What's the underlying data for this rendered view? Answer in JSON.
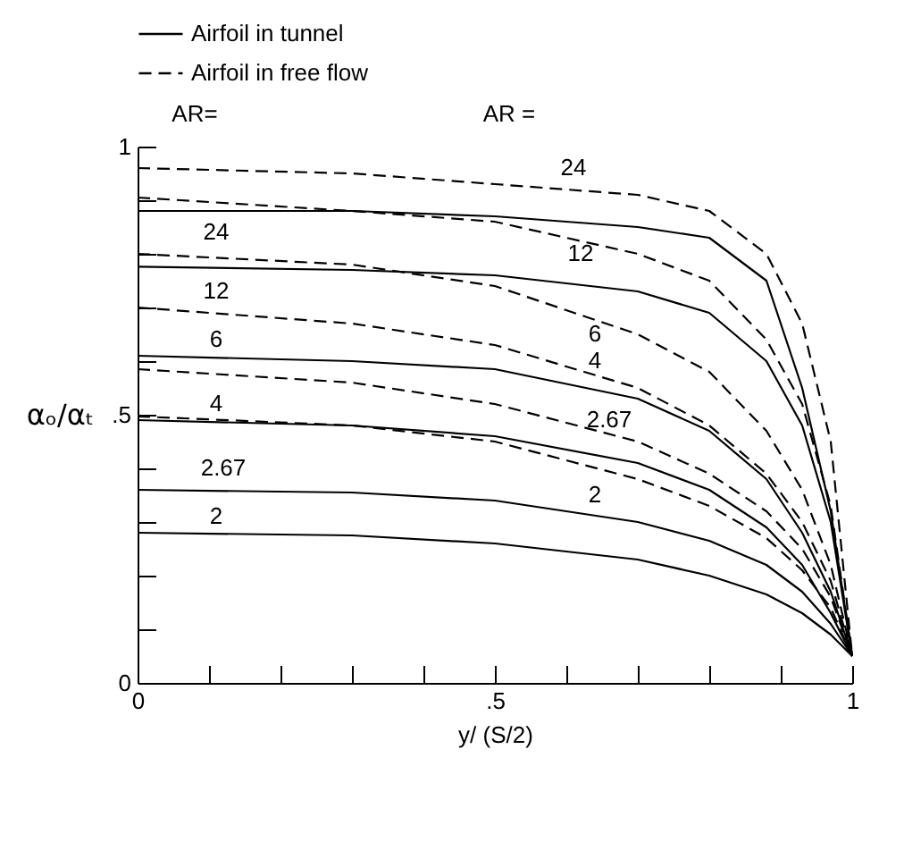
{
  "chart_data": {
    "type": "line",
    "xlabel": "y/ (S/2)",
    "ylabel": "αₒ/αₜ",
    "legend": "top",
    "marker": "none",
    "grid": false,
    "xlim": [
      0,
      1
    ],
    "ylim": [
      0,
      1
    ],
    "xticks": [
      0,
      {
        "value": 0.1,
        "label": null
      },
      {
        "value": 0.2,
        "label": null
      },
      {
        "value": 0.3,
        "label": null
      },
      {
        "value": 0.4,
        "label": null
      },
      {
        "value": 0.5,
        "label": ".5"
      },
      {
        "value": 0.6,
        "label": null
      },
      {
        "value": 0.7,
        "label": null
      },
      {
        "value": 0.8,
        "label": null
      },
      {
        "value": 0.9,
        "label": null
      },
      1
    ],
    "yticks": [
      0,
      {
        "value": 0.1,
        "label": null
      },
      {
        "value": 0.2,
        "label": null
      },
      {
        "value": 0.3,
        "label": null
      },
      {
        "value": 0.4,
        "label": null
      },
      {
        "value": 0.5,
        "label": ".5"
      },
      {
        "value": 0.6,
        "label": null
      },
      {
        "value": 0.7,
        "label": null
      },
      {
        "value": 0.8,
        "label": null
      },
      {
        "value": 0.9,
        "label": null
      },
      1
    ],
    "x": [
      0,
      0.3,
      0.5,
      0.7,
      0.8,
      0.88,
      0.93,
      0.97,
      1
    ],
    "series": [
      {
        "name": "Airfoil in tunnel",
        "color": "#000000",
        "line_style": "solid",
        "values": [
          0.88,
          0.88,
          0.87,
          0.85,
          0.83,
          0.75,
          0.55,
          0.32,
          0.05
        ]
      },
      {
        "color": "#000000",
        "line_style": "solid",
        "values": [
          0.776,
          0.77,
          0.76,
          0.73,
          0.69,
          0.6,
          0.48,
          0.3,
          0.05
        ]
      },
      {
        "color": "#000000",
        "line_style": "solid",
        "values": [
          0.61,
          0.6,
          0.585,
          0.53,
          0.47,
          0.38,
          0.28,
          0.17,
          0.05
        ]
      },
      {
        "color": "#000000",
        "line_style": "solid",
        "values": [
          0.49,
          0.48,
          0.46,
          0.41,
          0.36,
          0.29,
          0.22,
          0.13,
          0.05
        ]
      },
      {
        "color": "#000000",
        "line_style": "solid",
        "values": [
          0.36,
          0.355,
          0.34,
          0.3,
          0.265,
          0.22,
          0.17,
          0.11,
          0.05
        ]
      },
      {
        "color": "#000000",
        "line_style": "solid",
        "values": [
          0.28,
          0.275,
          0.26,
          0.23,
          0.2,
          0.165,
          0.13,
          0.09,
          0.05
        ]
      },
      {
        "name": "Airfoil in free flow",
        "color": "#000000",
        "line_style": "dashed",
        "values": [
          0.96,
          0.95,
          0.93,
          0.91,
          0.88,
          0.8,
          0.67,
          0.45,
          0.05
        ]
      },
      {
        "color": "#000000",
        "line_style": "dashed",
        "values": [
          0.905,
          0.88,
          0.86,
          0.8,
          0.75,
          0.64,
          0.52,
          0.33,
          0.05
        ]
      },
      {
        "color": "#000000",
        "line_style": "dashed",
        "values": [
          0.8,
          0.78,
          0.74,
          0.65,
          0.58,
          0.47,
          0.36,
          0.22,
          0.05
        ]
      },
      {
        "color": "#000000",
        "line_style": "dashed",
        "values": [
          0.7,
          0.67,
          0.63,
          0.55,
          0.48,
          0.39,
          0.3,
          0.19,
          0.05
        ]
      },
      {
        "color": "#000000",
        "line_style": "dashed",
        "values": [
          0.585,
          0.56,
          0.52,
          0.45,
          0.39,
          0.32,
          0.25,
          0.16,
          0.05
        ]
      },
      {
        "color": "#000000",
        "line_style": "dashed",
        "values": [
          0.497,
          0.48,
          0.45,
          0.38,
          0.33,
          0.27,
          0.21,
          0.14,
          0.05
        ]
      }
    ],
    "annotations": [
      "AR=",
      "AR =",
      "24",
      "12",
      "6",
      "4",
      "2.67",
      "2",
      "24",
      "12",
      "6",
      "4",
      "2.67",
      "2"
    ]
  }
}
